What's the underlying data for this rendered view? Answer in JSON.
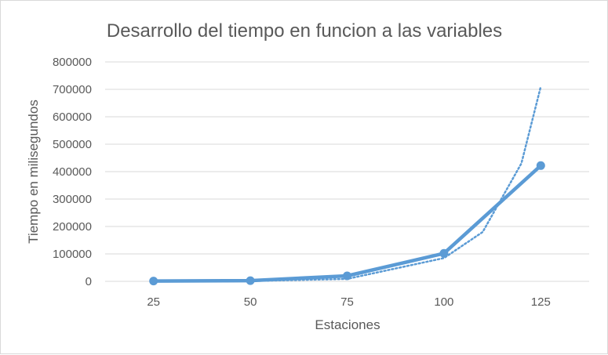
{
  "chart_data": {
    "type": "line",
    "title": "Desarrollo del tiempo en funcion a las variables",
    "xlabel": "Estaciones",
    "ylabel": "Tiempo en milisegundos",
    "categories": [
      "25",
      "50",
      "75",
      "100",
      "125"
    ],
    "x": [
      25,
      50,
      75,
      100,
      125
    ],
    "y_ticks": [
      "0",
      "100000",
      "200000",
      "300000",
      "400000",
      "500000",
      "600000",
      "700000",
      "800000"
    ],
    "ylim": [
      0,
      800000
    ],
    "grid": true,
    "legend": "none",
    "series": [
      {
        "values": [
          1000,
          2500,
          20000,
          102000,
          422000
        ],
        "color": "#5b9bd5",
        "style": "solid-markers"
      },
      {
        "trendline": "exponential",
        "color": "#5b9bd5",
        "style": "dotted",
        "trend_points": [
          [
            25,
            100
          ],
          [
            50,
            1000
          ],
          [
            75,
            9000
          ],
          [
            100,
            85000
          ],
          [
            110,
            180000
          ],
          [
            120,
            430000
          ],
          [
            125,
            710000
          ]
        ]
      }
    ]
  }
}
